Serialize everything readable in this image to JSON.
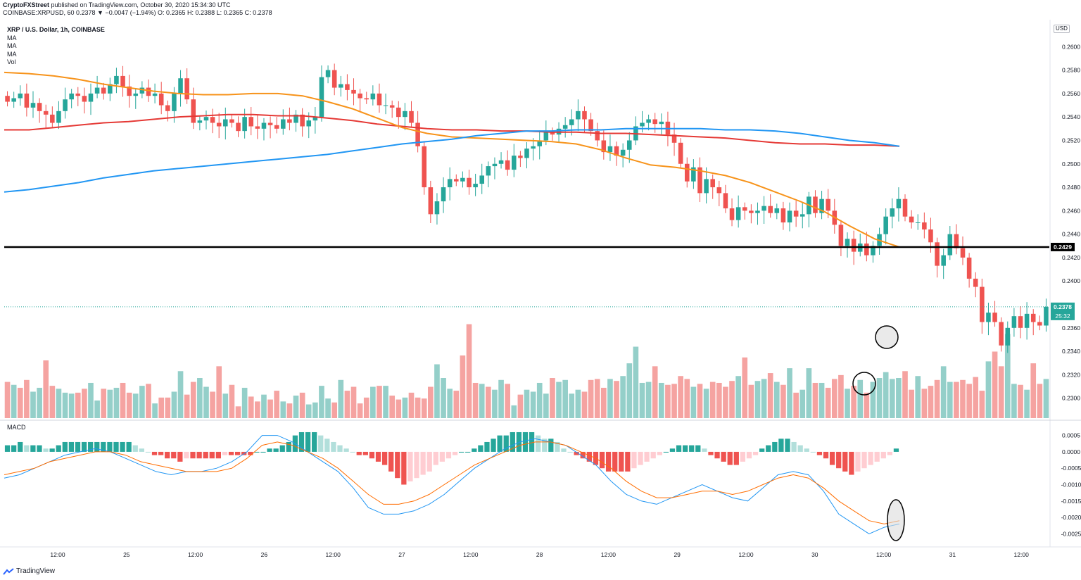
{
  "header": {
    "author": "CryptoFXStreet",
    "published_text": " published on TradingView.com, October 30, 2020 15:34:30 UTC",
    "symbol_line": "COINBASE:XRPUSD, 60  0.2378  ▼ −0.0047 (−1.94%)  O: 0.2365  H: 0.2388  L: 0.2365  C: 0.2378"
  },
  "legend": {
    "title": "XRP / U.S. Dollar, 1h, COINBASE",
    "items": [
      "MA",
      "MA",
      "MA",
      "Vol"
    ]
  },
  "currency": "USD",
  "macd_label": "MACD",
  "footer": {
    "brand": "TradingView"
  },
  "colors": {
    "up": "#26a69a",
    "down": "#ef5350",
    "vol_up": "#94cfc9",
    "vol_down": "#f5a3a1",
    "ma_fast": "#f7931a",
    "ma_mid": "#2196f3",
    "ma_slow": "#e53935",
    "support": "#000000",
    "macd_line": "#2196f3",
    "signal_line": "#ff6d00"
  },
  "chart_data": [
    {
      "type": "candlestick",
      "title": "XRP / U.S. Dollar, 1h, COINBASE",
      "ylim": [
        0.2283,
        0.2623
      ],
      "y_ticks": [
        "0.2600",
        "0.2580",
        "0.2560",
        "0.2540",
        "0.2520",
        "0.2500",
        "0.2480",
        "0.2460",
        "0.2440",
        "0.2420",
        "0.2400",
        "0.2360",
        "0.2340",
        "0.2320",
        "0.2300"
      ],
      "x_tick_labels": [
        "12:00",
        "25",
        "12:00",
        "26",
        "12:00",
        "27",
        "12:00",
        "28",
        "12:00",
        "29",
        "12:00",
        "30",
        "12:00",
        "31",
        "12:00"
      ],
      "close": [
        0.2553,
        0.2556,
        0.256,
        0.2548,
        0.2552,
        0.2545,
        0.2542,
        0.2535,
        0.2545,
        0.2555,
        0.256,
        0.2558,
        0.2553,
        0.256,
        0.2565,
        0.256,
        0.2568,
        0.2575,
        0.2566,
        0.2558,
        0.256,
        0.2565,
        0.2558,
        0.256,
        0.255,
        0.2545,
        0.256,
        0.2573,
        0.2555,
        0.2535,
        0.2537,
        0.254,
        0.2535,
        0.2532,
        0.2538,
        0.2535,
        0.2528,
        0.254,
        0.2532,
        0.253,
        0.2535,
        0.2533,
        0.253,
        0.2538,
        0.2535,
        0.2542,
        0.2532,
        0.2537,
        0.254,
        0.2574,
        0.258,
        0.2565,
        0.2568,
        0.2563,
        0.256,
        0.2556,
        0.2555,
        0.256,
        0.255,
        0.255,
        0.2548,
        0.254,
        0.2545,
        0.2535,
        0.2515,
        0.248,
        0.2457,
        0.2468,
        0.248,
        0.2487,
        0.2485,
        0.2488,
        0.248,
        0.2483,
        0.249,
        0.2498,
        0.25,
        0.2503,
        0.2495,
        0.2507,
        0.2505,
        0.2513,
        0.2515,
        0.252,
        0.2527,
        0.2525,
        0.253,
        0.2533,
        0.2538,
        0.2545,
        0.2538,
        0.2528,
        0.252,
        0.251,
        0.2515,
        0.2507,
        0.2512,
        0.252,
        0.2532,
        0.2535,
        0.2538,
        0.2534,
        0.2536,
        0.2525,
        0.2518,
        0.25,
        0.2485,
        0.2497,
        0.2475,
        0.2487,
        0.248,
        0.2475,
        0.2462,
        0.2452,
        0.2463,
        0.246,
        0.2458,
        0.246,
        0.2464,
        0.2458,
        0.2462,
        0.245,
        0.246,
        0.2455,
        0.2457,
        0.2472,
        0.2458,
        0.247,
        0.246,
        0.2448,
        0.243,
        0.2436,
        0.2425,
        0.2432,
        0.2422,
        0.243,
        0.244,
        0.2455,
        0.2462,
        0.247,
        0.2455,
        0.245,
        0.245,
        0.2444,
        0.2433,
        0.2413,
        0.2422,
        0.244,
        0.2428,
        0.242,
        0.2402,
        0.2395,
        0.2365,
        0.2373,
        0.2365,
        0.2345,
        0.236,
        0.237,
        0.236,
        0.2372,
        0.2365,
        0.2362,
        0.2378
      ],
      "series": [
        {
          "name": "MA",
          "values": [
            0.2529,
            0.2529,
            0.2531,
            0.2533,
            0.2535,
            0.2536,
            0.2538,
            0.254,
            0.2541,
            0.2542,
            0.2542,
            0.2541,
            0.2541,
            0.2539,
            0.2537,
            0.2534,
            0.2532,
            0.253,
            0.2529,
            0.2529,
            0.2528,
            0.2528,
            0.2527,
            0.2527,
            0.2526,
            0.2526,
            0.2525,
            0.2524,
            0.2523,
            0.2522,
            0.252,
            0.2518,
            0.2517,
            0.2517,
            0.2516,
            0.2516,
            0.2515
          ]
        },
        {
          "name": "MA",
          "values": [
            0.2578,
            0.2577,
            0.2575,
            0.2572,
            0.2568,
            0.2565,
            0.2562,
            0.256,
            0.2559,
            0.2559,
            0.256,
            0.256,
            0.2558,
            0.2553,
            0.2547,
            0.2539,
            0.2531,
            0.2526,
            0.2523,
            0.2522,
            0.2521,
            0.252,
            0.2519,
            0.2517,
            0.2512,
            0.2505,
            0.2499,
            0.2497,
            0.2494,
            0.249,
            0.2484,
            0.2476,
            0.2468,
            0.2459,
            0.2447,
            0.2436,
            0.2429
          ]
        },
        {
          "name": "MA",
          "values": [
            0.2476,
            0.2478,
            0.2481,
            0.2484,
            0.2488,
            0.2491,
            0.2494,
            0.2496,
            0.2498,
            0.25,
            0.2502,
            0.2504,
            0.2506,
            0.2508,
            0.2511,
            0.2514,
            0.2517,
            0.2519,
            0.2521,
            0.2524,
            0.2526,
            0.2528,
            0.2528,
            0.2529,
            0.2529,
            0.253,
            0.253,
            0.253,
            0.253,
            0.2529,
            0.2529,
            0.2528,
            0.2526,
            0.2523,
            0.252,
            0.2518,
            0.2515
          ]
        }
      ],
      "annotations": {
        "support_level": 0.2429,
        "support_label": "0.2429",
        "last_price": 0.2378,
        "last_price_label": "0.2378",
        "countdown": "25:32"
      }
    },
    {
      "type": "bar",
      "name": "Vol",
      "values_relative": [
        0.37,
        0.34,
        0.31,
        0.39,
        0.27,
        0.31,
        0.59,
        0.33,
        0.3,
        0.26,
        0.25,
        0.26,
        0.3,
        0.36,
        0.18,
        0.3,
        0.29,
        0.31,
        0.36,
        0.26,
        0.25,
        0.33,
        0.35,
        0.15,
        0.21,
        0.21,
        0.27,
        0.48,
        0.24,
        0.37,
        0.41,
        0.32,
        0.27,
        0.53,
        0.25,
        0.34,
        0.12,
        0.31,
        0.22,
        0.17,
        0.24,
        0.19,
        0.28,
        0.17,
        0.15,
        0.23,
        0.26,
        0.14,
        0.16,
        0.33,
        0.2,
        0.16,
        0.39,
        0.28,
        0.32,
        0.15,
        0.21,
        0.32,
        0.33,
        0.33,
        0.23,
        0.19,
        0.21,
        0.26,
        0.21,
        0.2,
        0.32,
        0.55,
        0.41,
        0.3,
        0.28,
        0.64,
        0.96,
        0.36,
        0.35,
        0.32,
        0.29,
        0.39,
        0.35,
        0.13,
        0.24,
        0.29,
        0.27,
        0.36,
        0.25,
        0.41,
        0.37,
        0.39,
        0.25,
        0.29,
        0.27,
        0.39,
        0.4,
        0.31,
        0.4,
        0.38,
        0.43,
        0.56,
        0.73,
        0.36,
        0.37,
        0.53,
        0.36,
        0.34,
        0.35,
        0.43,
        0.4,
        0.32,
        0.35,
        0.3,
        0.37,
        0.36,
        0.32,
        0.38,
        0.43,
        0.62,
        0.34,
        0.38,
        0.4,
        0.46,
        0.37,
        0.34,
        0.51,
        0.26,
        0.29,
        0.51,
        0.36,
        0.36,
        0.31,
        0.4,
        0.44,
        0.3,
        0.33,
        0.39,
        0.26,
        0.37,
        0.41,
        0.47,
        0.4,
        0.41,
        0.48,
        0.29,
        0.43,
        0.3,
        0.33,
        0.39,
        0.53,
        0.37,
        0.37,
        0.39,
        0.35,
        0.42,
        0.28,
        0.58,
        0.68,
        0.53,
        0.86,
        0.35,
        0.34,
        0.29,
        0.56,
        0.35,
        0.4,
        0.38,
        0.39,
        0.32,
        0.34,
        0.31
      ],
      "up_flags": [
        0,
        1,
        0,
        0,
        1,
        1,
        0,
        0,
        1,
        1,
        1,
        0,
        0,
        1,
        1,
        0,
        1,
        1,
        0,
        0,
        1,
        1,
        0,
        1,
        0,
        0,
        1,
        1,
        0,
        0,
        1,
        1,
        0,
        0,
        1,
        0,
        0,
        1,
        0,
        0,
        1,
        0,
        0,
        1,
        0,
        1,
        0,
        1,
        1,
        1,
        1,
        0,
        1,
        0,
        0,
        0,
        0,
        1,
        0,
        1,
        0,
        0,
        1,
        0,
        0,
        0,
        0,
        1,
        1,
        1,
        0,
        0,
        0,
        0,
        1,
        0,
        1,
        1,
        0,
        1,
        0,
        1,
        1,
        1,
        1,
        0,
        1,
        1,
        1,
        1,
        0,
        0,
        0,
        0,
        1,
        0,
        1,
        1,
        1,
        1,
        1,
        0,
        1,
        0,
        0,
        0,
        0,
        1,
        0,
        1,
        0,
        0,
        0,
        0,
        1,
        0,
        0,
        1,
        1,
        0,
        1,
        0,
        1,
        0,
        1,
        1,
        0,
        1,
        0,
        0,
        0,
        1,
        0,
        1,
        0,
        1,
        1,
        1,
        1,
        1,
        0,
        0,
        1,
        0,
        0,
        0,
        1,
        1,
        0,
        0,
        0,
        0,
        0,
        1,
        0,
        0,
        1,
        1,
        0,
        1,
        0,
        0,
        1
      ]
    },
    {
      "type": "line",
      "name": "MACD",
      "ylim": [
        -0.0029,
        0.0009
      ],
      "y_ticks": [
        "0.0005",
        "0.0000",
        "-0.0005",
        "-0.0010",
        "-0.0015",
        "-0.0020",
        "-0.0025"
      ],
      "histogram": [
        0.0002,
        0.0002,
        0.0003,
        0.0002,
        0.0002,
        0.0002,
        0.0001,
        0.0001,
        0.0002,
        0.0003,
        0.0003,
        0.0003,
        0.0003,
        0.0003,
        0.0003,
        0.0003,
        0.0003,
        0.0003,
        0.0003,
        0.0003,
        0.0002,
        0.0001,
        0.0,
        -0.0001,
        -0.0001,
        -0.0002,
        -0.0002,
        -0.0003,
        -0.0002,
        -0.0002,
        -0.0002,
        -0.0002,
        -0.0002,
        -0.0002,
        -0.0001,
        -0.0001,
        -0.0001,
        -0.0001,
        -0.0001,
        0.0,
        0.0,
        0.0001,
        0.0001,
        0.0002,
        0.0003,
        0.0005,
        0.0006,
        0.0006,
        0.0006,
        0.0005,
        0.0004,
        0.0003,
        0.0002,
        0.0001,
        0.0,
        -0.0001,
        -0.0001,
        -0.0002,
        -0.0003,
        -0.0004,
        -0.0006,
        -0.0008,
        -0.001,
        -0.0009,
        -0.0008,
        -0.0007,
        -0.0006,
        -0.0004,
        -0.0003,
        -0.0002,
        -0.0001,
        0.0,
        0.0,
        0.0001,
        0.0002,
        0.0003,
        0.0004,
        0.0005,
        0.0005,
        0.0006,
        0.0006,
        0.0006,
        0.0006,
        0.0005,
        0.0004,
        0.0004,
        0.0003,
        0.0001,
        0.0,
        -0.0001,
        -0.0002,
        -0.0003,
        -0.0004,
        -0.0005,
        -0.0006,
        -0.0006,
        -0.0006,
        -0.0006,
        -0.0005,
        -0.0004,
        -0.0003,
        -0.0002,
        -0.0001,
        0.0,
        0.0001,
        0.0002,
        0.0002,
        0.0002,
        0.0002,
        0.0001,
        -0.0001,
        -0.0002,
        -0.0003,
        -0.0004,
        -0.0004,
        -0.0003,
        -0.0002,
        -0.0001,
        0.0001,
        0.0002,
        0.0003,
        0.0004,
        0.0004,
        0.0003,
        0.0002,
        0.0001,
        0.0,
        -0.0001,
        -0.0002,
        -0.0004,
        -0.0005,
        -0.0006,
        -0.0007,
        -0.0006,
        -0.0005,
        -0.0004,
        -0.0003,
        -0.0002,
        -0.0001,
        0.0001
      ],
      "series": [
        {
          "name": "MACD",
          "values": [
            -0.0008,
            -0.0007,
            -0.0005,
            -0.0003,
            -0.0001,
            0.0,
            0.0001,
            0.0,
            -0.0002,
            -0.0004,
            -0.0006,
            -0.0007,
            -0.0006,
            -0.0006,
            -0.0005,
            -0.0003,
            0.0,
            0.0005,
            0.0005,
            0.0003,
            0.0,
            -0.0003,
            -0.0006,
            -0.0011,
            -0.0017,
            -0.0019,
            -0.0019,
            -0.0018,
            -0.0016,
            -0.0013,
            -0.0009,
            -0.0005,
            -0.0002,
            0.0001,
            0.0003,
            0.0004,
            0.0003,
            0.0002,
            -0.0001,
            -0.0004,
            -0.0009,
            -0.0013,
            -0.0015,
            -0.0016,
            -0.0014,
            -0.0012,
            -0.001,
            -0.0012,
            -0.0014,
            -0.0015,
            -0.0011,
            -0.0007,
            -0.0006,
            -0.0007,
            -0.0012,
            -0.0019,
            -0.0022,
            -0.0025,
            -0.0023,
            -0.0022
          ]
        },
        {
          "name": "Signal",
          "values": [
            -0.0007,
            -0.0006,
            -0.0005,
            -0.0003,
            -0.0002,
            -0.0001,
            0.0,
            0.0,
            -0.0001,
            -0.0003,
            -0.0004,
            -0.0005,
            -0.0006,
            -0.0006,
            -0.0006,
            -0.0005,
            -0.0002,
            0.0002,
            0.0003,
            0.0002,
            0.0,
            -0.0002,
            -0.0005,
            -0.0009,
            -0.0013,
            -0.0016,
            -0.0016,
            -0.0015,
            -0.0013,
            -0.001,
            -0.0007,
            -0.0004,
            -0.0002,
            0.0,
            0.0002,
            0.0003,
            0.0003,
            0.0002,
            0.0,
            -0.0002,
            -0.0005,
            -0.0009,
            -0.0012,
            -0.0014,
            -0.0014,
            -0.0013,
            -0.0012,
            -0.0012,
            -0.0013,
            -0.0012,
            -0.001,
            -0.0008,
            -0.0007,
            -0.0008,
            -0.0011,
            -0.0015,
            -0.0018,
            -0.0021,
            -0.0022,
            -0.0021
          ]
        }
      ]
    }
  ]
}
